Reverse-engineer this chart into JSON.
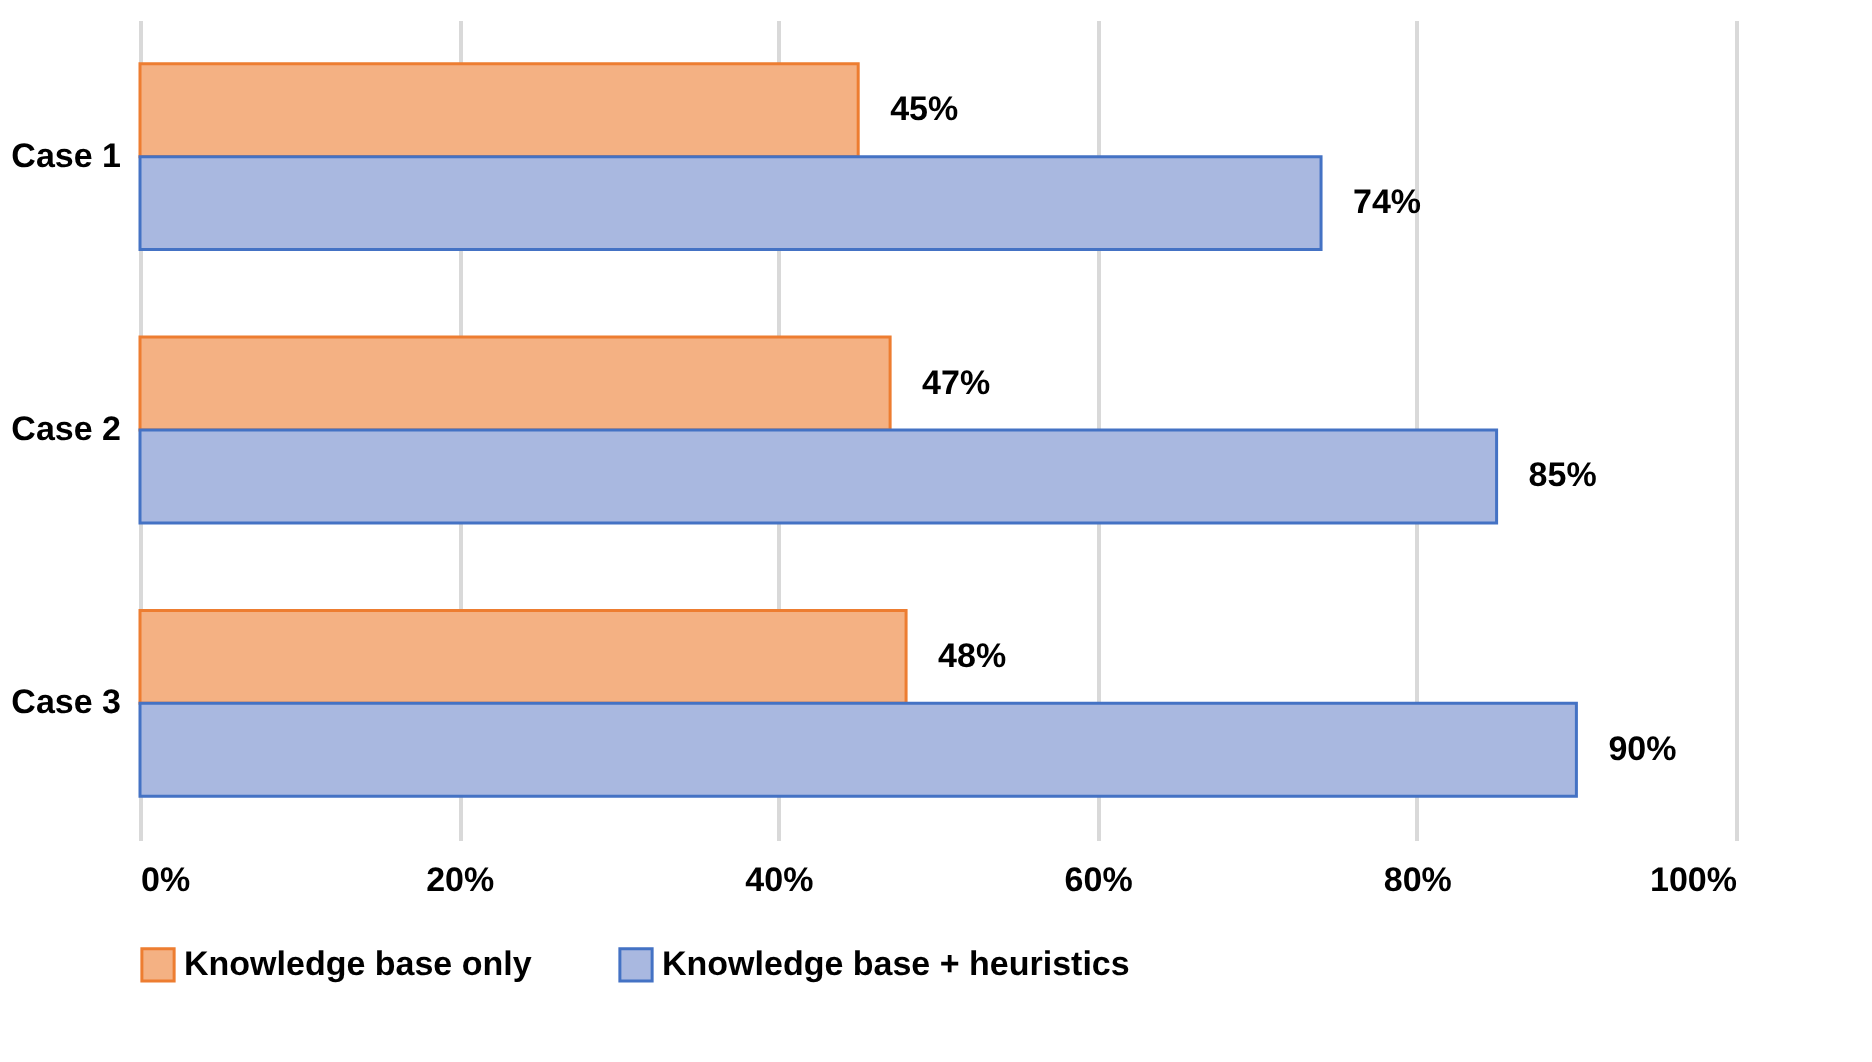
{
  "chart_data": {
    "type": "bar",
    "orientation": "horizontal",
    "categories": [
      "Case 1",
      "Case 2",
      "Case 3"
    ],
    "series": [
      {
        "name": "Knowledge base only",
        "color": "#f4b183",
        "values": [
          45,
          47,
          48
        ],
        "value_labels": [
          "45%",
          "47%",
          "48%"
        ]
      },
      {
        "name": "Knowledge base + heuristics",
        "color": "#a9b8e0",
        "values": [
          74,
          85,
          90
        ],
        "value_labels": [
          "74%",
          "85%",
          "90%"
        ]
      }
    ],
    "xlim": [
      0,
      100
    ],
    "xticks": [
      {
        "value": 0,
        "label": "0%"
      },
      {
        "value": 20,
        "label": "20%"
      },
      {
        "value": 40,
        "label": "40%"
      },
      {
        "value": 60,
        "label": "60%"
      },
      {
        "value": 80,
        "label": "80%"
      },
      {
        "value": 100,
        "label": "100%"
      }
    ],
    "grid": "x",
    "legend": "bottom"
  }
}
